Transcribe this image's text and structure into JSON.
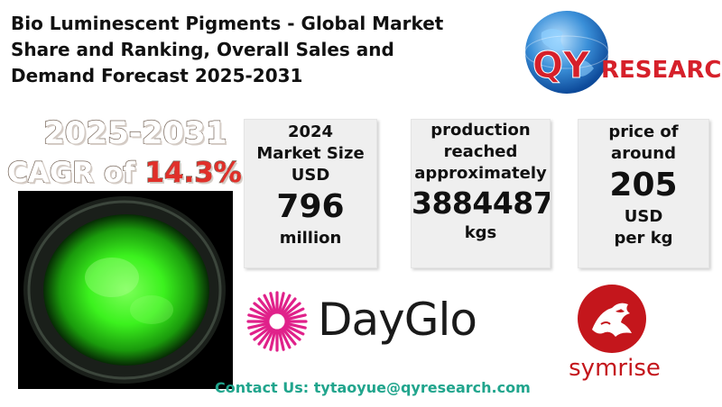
{
  "title": {
    "line1": "Bio Luminescent Pigments - Global Market",
    "line2": "Share and Ranking, Overall Sales and",
    "line3": "Demand Forecast 2025-2031"
  },
  "logo": {
    "brand_q": "QY",
    "brand_rest": "RESEARCH",
    "color": "#d6202a"
  },
  "cagr": {
    "years": "2025-2031",
    "prefix": "CAGR of ",
    "value": "14.3%"
  },
  "cards": {
    "market_size": {
      "line1": "2024",
      "line2": "Market Size",
      "line3": "USD",
      "value": "796",
      "unit": "million"
    },
    "production": {
      "line1": "production",
      "line2": "reached",
      "line3": "approximately",
      "value": "3884487",
      "unit": "kgs"
    },
    "price": {
      "line1": "price of",
      "line2": "around",
      "value": "205",
      "unit1": "USD",
      "unit2": "per kg"
    }
  },
  "companies": {
    "dayglo": "DayGlo",
    "symrise": "symrise"
  },
  "contact": {
    "text": "Contact Us: tytaoyue@qyresearch.com"
  },
  "colors": {
    "accent_red": "#e0302a",
    "contact_teal": "#21a58d",
    "glow_green": "#4dff3a",
    "dayglo_magenta": "#e0218a"
  }
}
